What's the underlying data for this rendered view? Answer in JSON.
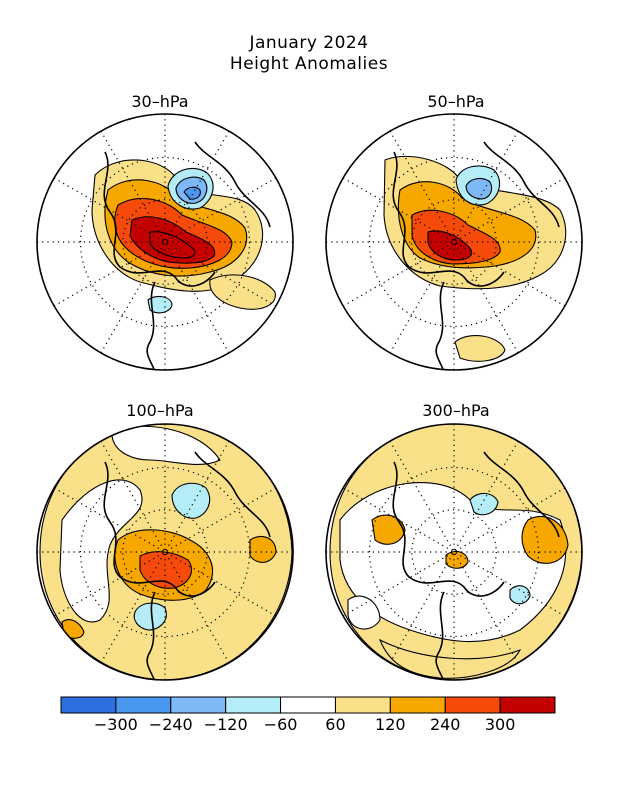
{
  "title": {
    "line1": "January 2024",
    "line2": "Height Anomalies"
  },
  "panels": [
    {
      "label": "30–hPa"
    },
    {
      "label": "50–hPa"
    },
    {
      "label": "100–hPa"
    },
    {
      "label": "300–hPa"
    }
  ],
  "colorbar": {
    "colors": [
      "#2b6fe0",
      "#4a97f0",
      "#7db8f7",
      "#b4ecf8",
      "#ffffff",
      "#fbe08a",
      "#f7a800",
      "#f54a0a",
      "#c40000"
    ],
    "labels": [
      "−300",
      "−240",
      "−120",
      "−60",
      "60",
      "120",
      "240",
      "300"
    ]
  },
  "map_layers": {
    "positive_colors": [
      "#fbe08a",
      "#f7a800",
      "#f54a0a",
      "#c40000"
    ],
    "negative_colors": [
      "#b4ecf8",
      "#7db8f7",
      "#4a97f0"
    ]
  }
}
